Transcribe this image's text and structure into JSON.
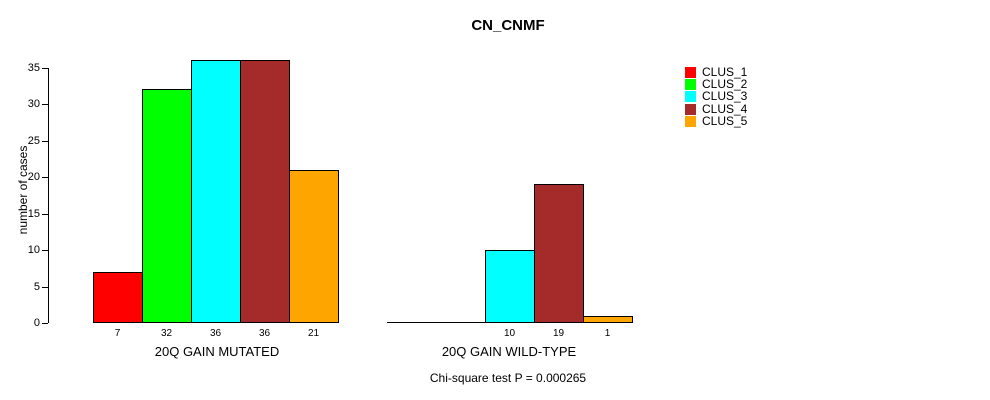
{
  "title": "CN_CNMF",
  "subtitle": "Chi-square test P = 0.000265",
  "chart_data": {
    "type": "bar",
    "title": "CN_CNMF",
    "ylabel": "number of cases",
    "xlabel": "",
    "ylim": [
      0,
      35
    ],
    "yticks": [
      0,
      5,
      10,
      15,
      20,
      25,
      30,
      35
    ],
    "grid": false,
    "legend_position": "right",
    "series_names": [
      "CLUS_1",
      "CLUS_2",
      "CLUS_3",
      "CLUS_4",
      "CLUS_5"
    ],
    "series_colors": [
      "#FF0000",
      "#00FF00",
      "#00FFFF",
      "#A52A2A",
      "#FFA500"
    ],
    "groups": [
      {
        "label": "20Q GAIN MUTATED",
        "values": [
          7,
          32,
          36,
          36,
          21
        ],
        "bar_labels": [
          "7",
          "32",
          "36",
          "36",
          "21"
        ]
      },
      {
        "label": "20Q GAIN WILD-TYPE",
        "values": [
          0,
          0,
          10,
          19,
          1
        ],
        "bar_labels": [
          "",
          "",
          "10",
          "19",
          "1"
        ]
      }
    ],
    "annotation": "Chi-square test P = 0.000265"
  }
}
